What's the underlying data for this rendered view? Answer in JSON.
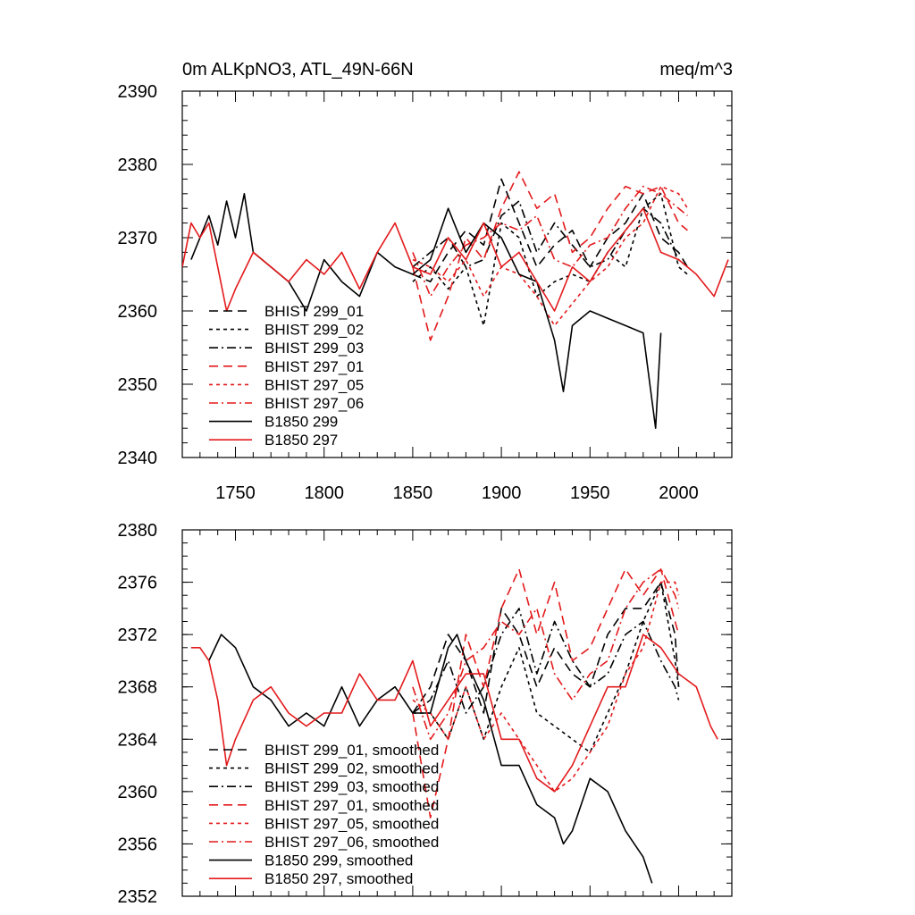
{
  "chart_data": [
    {
      "type": "line",
      "title": "0m ALKpNO3, ATL_49N-66N",
      "units": "meq/m^3",
      "xlabel": "",
      "ylabel": "",
      "xlim": [
        1720,
        2030
      ],
      "ylim": [
        2340,
        2390
      ],
      "x_ticks": [
        1750,
        1800,
        1850,
        1900,
        1950,
        2000
      ],
      "y_ticks": [
        2340,
        2350,
        2360,
        2370,
        2380,
        2390
      ],
      "x_tick_labels": [
        "1750",
        "1800",
        "1850",
        "1900",
        "1950",
        "2000"
      ],
      "y_tick_labels": [
        "2340",
        "2350",
        "2360",
        "2370",
        "2380",
        "2390"
      ],
      "legend_position": "lower-left",
      "series": [
        {
          "name": "BHIST 299_01",
          "color": "#000000",
          "dash": "long-dash",
          "x": [
            1850,
            1860,
            1870,
            1880,
            1890,
            1900,
            1910,
            1920,
            1930,
            1940,
            1950,
            1960,
            1970,
            1980,
            1990,
            2000,
            2005
          ],
          "values": [
            2365,
            2364,
            2368,
            2371,
            2369,
            2378,
            2372,
            2366,
            2369,
            2371,
            2366,
            2370,
            2372,
            2376,
            2370,
            2368,
            2366
          ]
        },
        {
          "name": "BHIST 299_02",
          "color": "#000000",
          "dash": "short-dash",
          "x": [
            1850,
            1860,
            1870,
            1880,
            1890,
            1900,
            1910,
            1920,
            1930,
            1940,
            1950,
            1960,
            1970,
            1980,
            1990,
            2000,
            2005
          ],
          "values": [
            2364,
            2366,
            2363,
            2366,
            2358,
            2372,
            2370,
            2362,
            2364,
            2365,
            2364,
            2368,
            2366,
            2374,
            2376,
            2366,
            2365
          ]
        },
        {
          "name": "BHIST 299_03",
          "color": "#000000",
          "dash": "dash-dot",
          "x": [
            1850,
            1860,
            1870,
            1880,
            1890,
            1900,
            1910,
            1920,
            1930,
            1940,
            1950,
            1960,
            1970,
            1980,
            1990,
            2000,
            2005
          ],
          "values": [
            2366,
            2368,
            2370,
            2366,
            2367,
            2373,
            2375,
            2368,
            2372,
            2369,
            2366,
            2367,
            2371,
            2374,
            2372,
            2367,
            2366
          ]
        },
        {
          "name": "BHIST 297_01",
          "color": "#e31a1c",
          "dash": "long-dash",
          "x": [
            1850,
            1860,
            1870,
            1880,
            1890,
            1900,
            1910,
            1920,
            1930,
            1940,
            1950,
            1960,
            1970,
            1980,
            1990,
            2000,
            2005
          ],
          "values": [
            2366,
            2356,
            2362,
            2370,
            2367,
            2374,
            2379,
            2374,
            2376,
            2368,
            2370,
            2374,
            2377,
            2376,
            2377,
            2372,
            2371
          ]
        },
        {
          "name": "BHIST 297_05",
          "color": "#e31a1c",
          "dash": "short-dash",
          "x": [
            1850,
            1860,
            1870,
            1880,
            1890,
            1900,
            1910,
            1920,
            1930,
            1940,
            1950,
            1960,
            1970,
            1980,
            1990,
            2000,
            2005
          ],
          "values": [
            2367,
            2366,
            2364,
            2367,
            2362,
            2366,
            2365,
            2362,
            2358,
            2361,
            2364,
            2366,
            2370,
            2372,
            2377,
            2376,
            2374
          ]
        },
        {
          "name": "BHIST 297_06",
          "color": "#e31a1c",
          "dash": "dash-dot",
          "x": [
            1850,
            1860,
            1870,
            1880,
            1890,
            1900,
            1910,
            1920,
            1930,
            1940,
            1950,
            1960,
            1970,
            1980,
            1990,
            2000,
            2005
          ],
          "values": [
            2368,
            2362,
            2366,
            2369,
            2370,
            2372,
            2371,
            2373,
            2367,
            2366,
            2369,
            2370,
            2374,
            2377,
            2376,
            2374,
            2373
          ]
        },
        {
          "name": "B1850 299",
          "color": "#000000",
          "dash": "solid",
          "x": [
            1725,
            1735,
            1740,
            1745,
            1750,
            1755,
            1760,
            1770,
            1780,
            1790,
            1800,
            1810,
            1820,
            1830,
            1840,
            1850,
            1860,
            1870,
            1880,
            1890,
            1900,
            1910,
            1920,
            1930,
            1935,
            1940,
            1950,
            1960,
            1970,
            1980,
            1987,
            1990
          ],
          "values": [
            2367,
            2373,
            2369,
            2375,
            2370,
            2376,
            2368,
            2366,
            2364,
            2360,
            2367,
            2364,
            2362,
            2368,
            2366,
            2365,
            2367,
            2374,
            2368,
            2372,
            2370,
            2365,
            2364,
            2356,
            2349,
            2358,
            2360,
            2359,
            2358,
            2357,
            2344,
            2357
          ]
        },
        {
          "name": "B1850 297",
          "color": "#e31a1c",
          "dash": "solid",
          "x": [
            1720,
            1725,
            1730,
            1735,
            1740,
            1745,
            1750,
            1760,
            1770,
            1780,
            1790,
            1800,
            1810,
            1820,
            1830,
            1840,
            1850,
            1860,
            1870,
            1880,
            1890,
            1900,
            1910,
            1920,
            1930,
            1940,
            1950,
            1960,
            1970,
            1980,
            1990,
            2000,
            2010,
            2020,
            2028
          ],
          "values": [
            2366,
            2372,
            2370,
            2372,
            2366,
            2360,
            2363,
            2368,
            2366,
            2364,
            2367,
            2365,
            2368,
            2363,
            2368,
            2372,
            2366,
            2365,
            2370,
            2367,
            2372,
            2366,
            2368,
            2364,
            2360,
            2366,
            2364,
            2368,
            2371,
            2374,
            2368,
            2367,
            2365,
            2362,
            2367
          ]
        }
      ]
    },
    {
      "type": "line",
      "title": "",
      "xlabel": "",
      "ylabel": "",
      "xlim": [
        1720,
        2030
      ],
      "ylim": [
        2352,
        2380
      ],
      "x_ticks": [
        1750,
        1800,
        1850,
        1900,
        1950,
        2000
      ],
      "y_ticks": [
        2352,
        2356,
        2360,
        2364,
        2368,
        2372,
        2376,
        2380
      ],
      "y_tick_labels": [
        "2352",
        "2356",
        "2360",
        "2364",
        "2368",
        "2372",
        "2376",
        "2380"
      ],
      "legend_position": "lower-left",
      "series": [
        {
          "name": "BHIST 299_01, smoothed",
          "color": "#000000",
          "dash": "long-dash",
          "x": [
            1850,
            1860,
            1870,
            1880,
            1890,
            1900,
            1910,
            1920,
            1930,
            1940,
            1950,
            1960,
            1970,
            1980,
            1990,
            1998,
            2000
          ],
          "values": [
            2366,
            2368,
            2372,
            2370,
            2366,
            2374,
            2372,
            2368,
            2371,
            2369,
            2368,
            2372,
            2374,
            2374,
            2376,
            2372,
            2368
          ]
        },
        {
          "name": "BHIST 299_02, smoothed",
          "color": "#000000",
          "dash": "short-dash",
          "x": [
            1850,
            1860,
            1870,
            1880,
            1890,
            1900,
            1910,
            1920,
            1930,
            1940,
            1950,
            1960,
            1970,
            1980,
            1990,
            1998,
            2000
          ],
          "values": [
            2366,
            2366,
            2364,
            2368,
            2364,
            2368,
            2371,
            2366,
            2365,
            2364,
            2363,
            2366,
            2369,
            2373,
            2376,
            2370,
            2368
          ]
        },
        {
          "name": "BHIST 299_03, smoothed",
          "color": "#000000",
          "dash": "dash-dot",
          "x": [
            1850,
            1860,
            1870,
            1880,
            1890,
            1900,
            1910,
            1920,
            1930,
            1940,
            1950,
            1960,
            1970,
            1980,
            1990,
            1998,
            2000
          ],
          "values": [
            2366,
            2367,
            2370,
            2366,
            2368,
            2372,
            2374,
            2369,
            2373,
            2370,
            2368,
            2369,
            2372,
            2373,
            2370,
            2368,
            2367
          ]
        },
        {
          "name": "BHIST 297_01, smoothed",
          "color": "#e31a1c",
          "dash": "long-dash",
          "x": [
            1850,
            1860,
            1870,
            1880,
            1890,
            1900,
            1910,
            1920,
            1930,
            1940,
            1950,
            1960,
            1970,
            1980,
            1990,
            1998,
            2000
          ],
          "values": [
            2366,
            2358,
            2364,
            2372,
            2368,
            2374,
            2377,
            2372,
            2376,
            2370,
            2371,
            2374,
            2377,
            2375,
            2377,
            2373,
            2372
          ]
        },
        {
          "name": "BHIST 297_05, smoothed",
          "color": "#e31a1c",
          "dash": "short-dash",
          "x": [
            1850,
            1860,
            1870,
            1880,
            1890,
            1900,
            1910,
            1920,
            1930,
            1940,
            1950,
            1960,
            1970,
            1980,
            1990,
            1998,
            2000
          ],
          "values": [
            2367,
            2366,
            2364,
            2368,
            2364,
            2366,
            2364,
            2362,
            2360,
            2361,
            2363,
            2365,
            2369,
            2371,
            2376,
            2376,
            2375
          ]
        },
        {
          "name": "BHIST 297_06, smoothed",
          "color": "#e31a1c",
          "dash": "dash-dot",
          "x": [
            1850,
            1860,
            1870,
            1880,
            1890,
            1900,
            1910,
            1920,
            1930,
            1940,
            1950,
            1960,
            1970,
            1980,
            1990,
            1998,
            2000
          ],
          "values": [
            2368,
            2364,
            2366,
            2370,
            2371,
            2373,
            2372,
            2374,
            2369,
            2367,
            2369,
            2370,
            2374,
            2376,
            2377,
            2375,
            2374
          ]
        },
        {
          "name": "B1850 299, smoothed",
          "color": "#000000",
          "dash": "solid",
          "x": [
            1735,
            1742,
            1750,
            1760,
            1770,
            1780,
            1790,
            1800,
            1810,
            1820,
            1830,
            1840,
            1850,
            1860,
            1870,
            1875,
            1880,
            1890,
            1900,
            1910,
            1920,
            1930,
            1935,
            1940,
            1950,
            1960,
            1970,
            1980,
            1985
          ],
          "values": [
            2370,
            2372,
            2371,
            2368,
            2367,
            2365,
            2366,
            2365,
            2368,
            2365,
            2367,
            2368,
            2366,
            2366,
            2371,
            2372,
            2370,
            2367,
            2362,
            2362,
            2359,
            2358,
            2356,
            2357,
            2361,
            2360,
            2357,
            2355,
            2353
          ]
        },
        {
          "name": "B1850 297, smoothed",
          "color": "#e31a1c",
          "dash": "solid",
          "x": [
            1725,
            1730,
            1735,
            1740,
            1745,
            1750,
            1760,
            1770,
            1780,
            1790,
            1800,
            1810,
            1820,
            1830,
            1840,
            1850,
            1860,
            1870,
            1880,
            1890,
            1900,
            1910,
            1920,
            1930,
            1940,
            1950,
            1960,
            1970,
            1980,
            1990,
            2000,
            2010,
            2018,
            2022
          ],
          "values": [
            2371,
            2371,
            2370,
            2367,
            2362,
            2364,
            2367,
            2368,
            2366,
            2365,
            2366,
            2366,
            2369,
            2367,
            2367,
            2370,
            2365,
            2367,
            2369,
            2369,
            2364,
            2364,
            2361,
            2360,
            2362,
            2365,
            2368,
            2368,
            2372,
            2371,
            2369,
            2368,
            2365,
            2364
          ]
        }
      ]
    }
  ]
}
